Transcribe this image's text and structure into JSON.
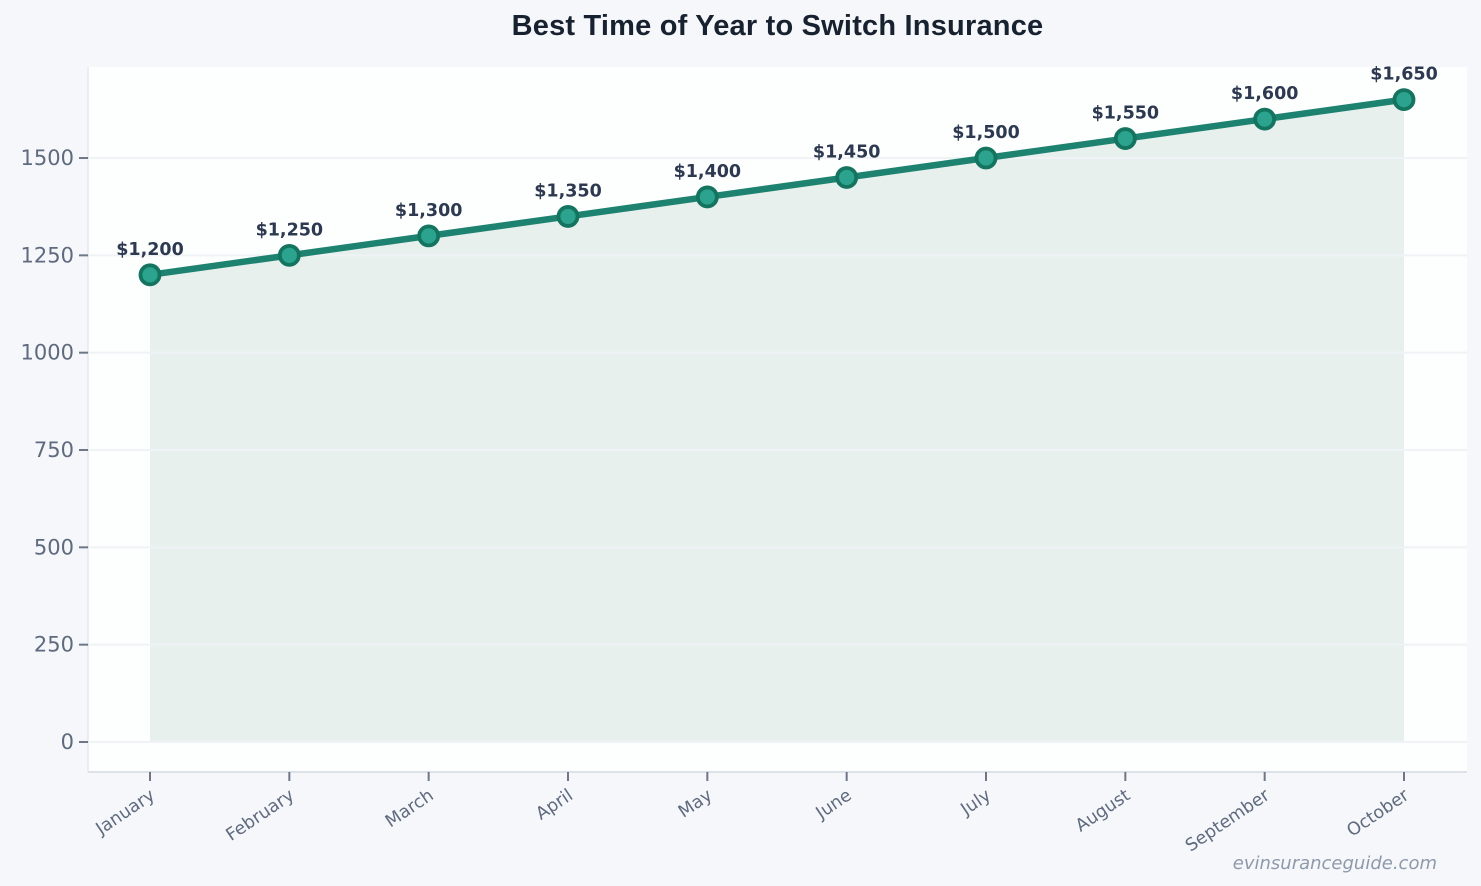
{
  "title": "Best Time of Year to Switch Insurance",
  "watermark": "evinsuranceguide.com",
  "colors": {
    "page_background": "#f5f7fa",
    "plot_background": "#fdfefe",
    "line": "#1d8270",
    "marker_fill": "#2ba38e",
    "marker_stroke": "#14745f",
    "area_fill": "#e7f0ed",
    "grid": "#f0f3f5",
    "axis_line": "#dde2e8",
    "tick": "#6d7788",
    "axis_label": "#5f6a7e",
    "data_label": "#2d3950",
    "title_color": "#17212f",
    "watermark_color": "#8e99ab"
  },
  "chart_data": {
    "type": "area",
    "title": "Best Time of Year to Switch Insurance",
    "categories": [
      "January",
      "February",
      "March",
      "April",
      "May",
      "June",
      "July",
      "August",
      "September",
      "October"
    ],
    "values": [
      1200,
      1250,
      1300,
      1350,
      1400,
      1450,
      1500,
      1550,
      1600,
      1650
    ],
    "point_labels": [
      "$1,200",
      "$1,250",
      "$1,300",
      "$1,350",
      "$1,400",
      "$1,450",
      "$1,500",
      "$1,550",
      "$1,600",
      "$1,650"
    ],
    "xlabel": "",
    "ylabel": "",
    "ylim": [
      0,
      1700
    ],
    "yticks": [
      0,
      250,
      500,
      750,
      1000,
      1250,
      1500
    ],
    "grid": true,
    "legend": false,
    "marker": "circle"
  }
}
